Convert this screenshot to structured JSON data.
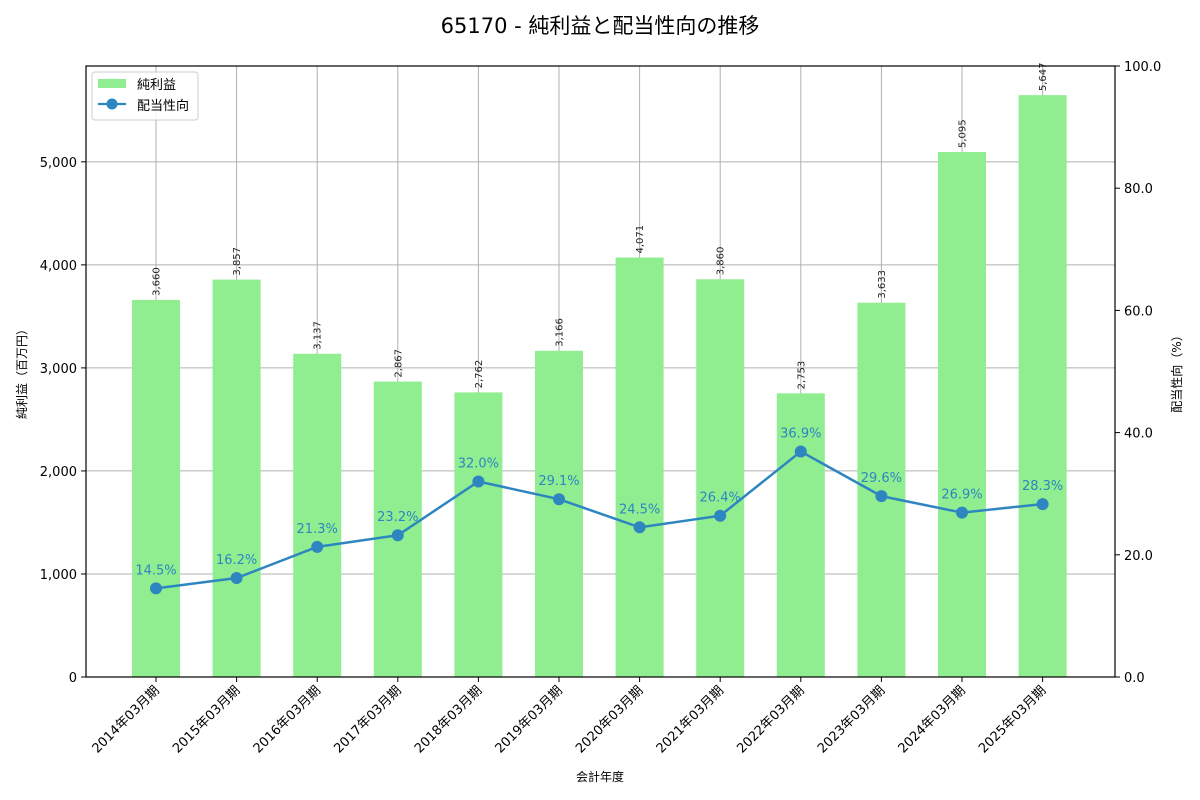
{
  "chart_data": {
    "type": "bar+line",
    "title": "65170 - 純利益と配当性向の推移",
    "xlabel": "会計年度",
    "ylabel": "純利益（百万円）",
    "y2label": "配当性向（%）",
    "categories": [
      "2014年03月期",
      "2015年03月期",
      "2016年03月期",
      "2017年03月期",
      "2018年03月期",
      "2019年03月期",
      "2020年03月期",
      "2021年03月期",
      "2022年03月期",
      "2023年03月期",
      "2024年03月期",
      "2025年03月期"
    ],
    "series": [
      {
        "name": "純利益",
        "type": "bar",
        "axis": "left",
        "color": "#90ee90",
        "values": [
          3660,
          3857,
          3137,
          2867,
          2762,
          3166,
          4071,
          3860,
          2753,
          3633,
          5095,
          5647
        ],
        "labels": [
          "3,660",
          "3,857",
          "3,137",
          "2,867",
          "2,762",
          "3,166",
          "4,071",
          "3,860",
          "2,753",
          "3,633",
          "5,095",
          "5,647"
        ]
      },
      {
        "name": "配当性向",
        "type": "line",
        "axis": "right",
        "color": "#2e86c1",
        "values": [
          14.5,
          16.2,
          21.3,
          23.2,
          32.0,
          29.1,
          24.5,
          26.4,
          36.9,
          29.6,
          26.9,
          28.3
        ],
        "labels": [
          "14.5%",
          "16.2%",
          "21.3%",
          "23.2%",
          "32.0%",
          "29.1%",
          "24.5%",
          "26.4%",
          "36.9%",
          "29.6%",
          "26.9%",
          "28.3%"
        ]
      }
    ],
    "ylim": [
      0,
      5930
    ],
    "y2lim": [
      0,
      100
    ],
    "yticks": [
      0,
      1000,
      2000,
      3000,
      4000,
      5000
    ],
    "ytick_labels": [
      "0",
      "1,000",
      "2,000",
      "3,000",
      "4,000",
      "5,000"
    ],
    "y2ticks": [
      0,
      20,
      40,
      60,
      80,
      100
    ],
    "y2tick_labels": [
      "0.0",
      "20.0",
      "40.0",
      "60.0",
      "80.0",
      "100.0"
    ],
    "grid": true,
    "legend_position": "upper left",
    "legend": [
      "純利益",
      "配当性向"
    ]
  }
}
